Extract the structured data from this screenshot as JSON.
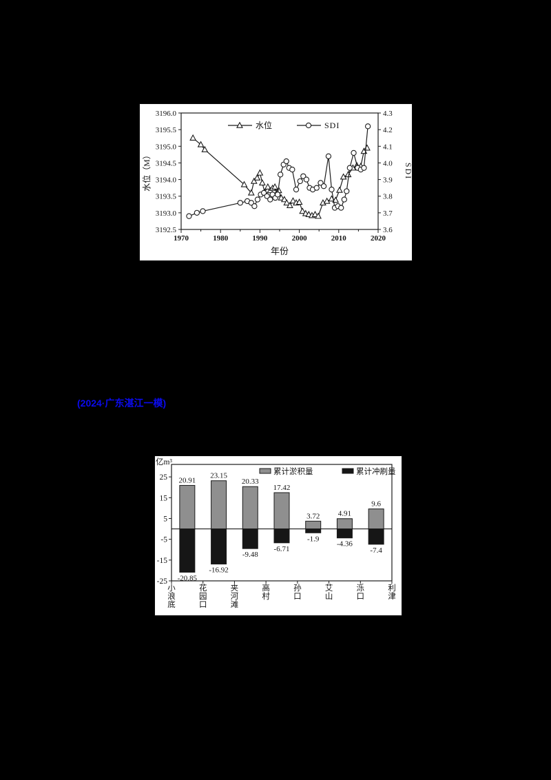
{
  "page": {
    "background": "#000000"
  },
  "note": {
    "text": "(2024·广东湛江一模)",
    "color": "#0b0bee"
  },
  "chart_data": [
    {
      "type": "line",
      "name": "water-level-sdi-chart",
      "xlabel": "年份",
      "ylabel_left": "水位（M）",
      "ylabel_right": "SDI",
      "xlim": [
        1970,
        2020
      ],
      "x_major_ticks": [
        1970,
        1980,
        1990,
        2000,
        2010,
        2020
      ],
      "x_minor_ticks": [
        1975,
        1985,
        1995,
        2005,
        2015
      ],
      "ylim_left": [
        3192.5,
        3196.0
      ],
      "y_ticks_left": [
        "3192.5",
        "3193.0",
        "3193.5",
        "3194.0",
        "3194.5",
        "3195.0",
        "3195.5",
        "3196.0"
      ],
      "ylim_right": [
        3.6,
        4.3
      ],
      "y_ticks_right": [
        "3.6",
        "3.7",
        "3.8",
        "3.9",
        "4.0",
        "4.1",
        "4.2",
        "4.3"
      ],
      "legend_position": "top-inside",
      "grid": false,
      "line_color": "#1a1a1a",
      "series": [
        {
          "name": "水位",
          "marker": "triangle",
          "axis": "left",
          "points": [
            [
              1973,
              3195.25
            ],
            [
              1975,
              3195.05
            ],
            [
              1976,
              3194.9
            ],
            [
              1986,
              3193.85
            ],
            [
              1987.8,
              3193.6
            ],
            [
              1988.5,
              3193.95
            ],
            [
              1989.3,
              3194.05
            ],
            [
              1990,
              3194.2
            ],
            [
              1990.6,
              3193.9
            ],
            [
              1991.2,
              3193.62
            ],
            [
              1992,
              3193.78
            ],
            [
              1992.6,
              3193.67
            ],
            [
              1993.2,
              3193.74
            ],
            [
              1993.8,
              3193.78
            ],
            [
              1994.3,
              3193.6
            ],
            [
              1994.8,
              3193.67
            ],
            [
              1995.4,
              3193.45
            ],
            [
              1996.2,
              3193.4
            ],
            [
              1996.8,
              3193.3
            ],
            [
              1997.6,
              3193.22
            ],
            [
              1998.4,
              3193.36
            ],
            [
              1999.2,
              3193.3
            ],
            [
              2000,
              3193.32
            ],
            [
              2000.8,
              3193.05
            ],
            [
              2001.6,
              3192.98
            ],
            [
              2002.4,
              3192.95
            ],
            [
              2003.2,
              3192.92
            ],
            [
              2004,
              3192.95
            ],
            [
              2004.8,
              3192.9
            ],
            [
              2006,
              3193.3
            ],
            [
              2007,
              3193.35
            ],
            [
              2008.2,
              3193.42
            ],
            [
              2009.2,
              3193.38
            ],
            [
              2010.2,
              3193.68
            ],
            [
              2011.2,
              3194.08
            ],
            [
              2012.4,
              3194.15
            ],
            [
              2013.6,
              3194.35
            ],
            [
              2014.6,
              3194.42
            ],
            [
              2015.6,
              3194.4
            ],
            [
              2016.4,
              3194.85
            ],
            [
              2017.2,
              3194.95
            ]
          ]
        },
        {
          "name": "SDI",
          "marker": "circle",
          "axis": "right",
          "points": [
            [
              1972,
              3.68
            ],
            [
              1974,
              3.7
            ],
            [
              1975.5,
              3.71
            ],
            [
              1985,
              3.76
            ],
            [
              1986.8,
              3.77
            ],
            [
              1987.8,
              3.76
            ],
            [
              1988.6,
              3.74
            ],
            [
              1989.4,
              3.78
            ],
            [
              1990.2,
              3.81
            ],
            [
              1991,
              3.82
            ],
            [
              1991.8,
              3.8
            ],
            [
              1992.6,
              3.78
            ],
            [
              1993.2,
              3.81
            ],
            [
              1993.9,
              3.79
            ],
            [
              1994.5,
              3.81
            ],
            [
              1995.2,
              3.93
            ],
            [
              1996,
              3.99
            ],
            [
              1996.7,
              4.01
            ],
            [
              1997.4,
              3.97
            ],
            [
              1998.2,
              3.96
            ],
            [
              1999.2,
              3.84
            ],
            [
              2000.2,
              3.89
            ],
            [
              2001,
              3.92
            ],
            [
              2001.8,
              3.9
            ],
            [
              2002.6,
              3.85
            ],
            [
              2003.4,
              3.84
            ],
            [
              2004.4,
              3.85
            ],
            [
              2005.4,
              3.88
            ],
            [
              2006.2,
              3.86
            ],
            [
              2007.4,
              4.04
            ],
            [
              2008.2,
              3.84
            ],
            [
              2009,
              3.73
            ],
            [
              2009.8,
              3.74
            ],
            [
              2010.6,
              3.73
            ],
            [
              2011.4,
              3.78
            ],
            [
              2012,
              3.83
            ],
            [
              2012.8,
              3.97
            ],
            [
              2013.8,
              4.06
            ],
            [
              2014.8,
              3.97
            ],
            [
              2015.6,
              3.96
            ],
            [
              2016.4,
              3.97
            ],
            [
              2017.4,
              4.22
            ]
          ]
        }
      ]
    },
    {
      "type": "bar",
      "name": "yellow-river-sediment-chart",
      "unit_label": "亿m³",
      "stations": [
        "小浪底",
        "花园口",
        "夹河滩",
        "高村",
        "孙口",
        "艾山",
        "泺口",
        "利津"
      ],
      "ylim": [
        -25,
        31
      ],
      "y_ticks": [
        25,
        15,
        5,
        -5,
        -15,
        -25
      ],
      "legend_position": "top-inside",
      "series": [
        {
          "name": "累计淤积量",
          "color": "#8f8f8f",
          "values": [
            20.91,
            23.15,
            20.33,
            17.42,
            3.72,
            4.91,
            9.6
          ]
        },
        {
          "name": "累计冲刷量",
          "color": "#161616",
          "values": [
            -20.85,
            -16.92,
            -9.48,
            -6.71,
            -1.9,
            -4.36,
            -7.4
          ]
        }
      ]
    }
  ]
}
